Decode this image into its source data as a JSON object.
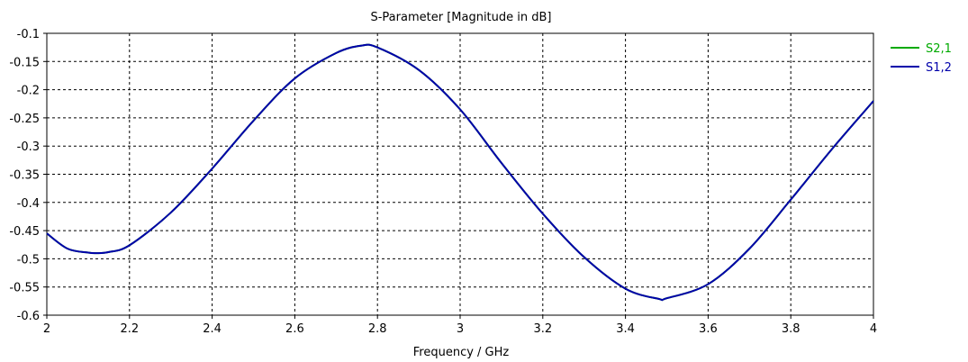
{
  "chart_data": {
    "type": "line",
    "title": "S-Parameter [Magnitude in dB]",
    "xlabel": "Frequency / GHz",
    "ylabel": "",
    "xlim": [
      2,
      4
    ],
    "ylim": [
      -0.6,
      -0.1
    ],
    "xticks": [
      "2",
      "2.2",
      "2.4",
      "2.6",
      "2.8",
      "3",
      "3.2",
      "3.4",
      "3.6",
      "3.8",
      "4"
    ],
    "yticks": [
      "-0.1",
      "-0.15",
      "-0.2",
      "-0.25",
      "-0.3",
      "-0.35",
      "-0.4",
      "-0.45",
      "-0.5",
      "-0.55",
      "-0.6"
    ],
    "grid": true,
    "legend_position": "top-right",
    "series": [
      {
        "name": "S2,1",
        "color": "#00aa00",
        "x": [
          2.0,
          2.05,
          2.1,
          2.12,
          2.15,
          2.2,
          2.3,
          2.4,
          2.5,
          2.6,
          2.7,
          2.76,
          2.8,
          2.9,
          3.0,
          3.1,
          3.2,
          3.3,
          3.4,
          3.48,
          3.5,
          3.6,
          3.7,
          3.8,
          3.9,
          4.0
        ],
        "y": [
          -0.455,
          -0.482,
          -0.489,
          -0.49,
          -0.488,
          -0.476,
          -0.418,
          -0.34,
          -0.255,
          -0.18,
          -0.135,
          -0.122,
          -0.125,
          -0.165,
          -0.235,
          -0.33,
          -0.42,
          -0.497,
          -0.553,
          -0.571,
          -0.57,
          -0.545,
          -0.482,
          -0.395,
          -0.305,
          -0.22
        ]
      },
      {
        "name": "S1,2",
        "color": "#0000aa",
        "x": [
          2.0,
          2.05,
          2.1,
          2.12,
          2.15,
          2.2,
          2.3,
          2.4,
          2.5,
          2.6,
          2.7,
          2.76,
          2.8,
          2.9,
          3.0,
          3.1,
          3.2,
          3.3,
          3.4,
          3.48,
          3.5,
          3.6,
          3.7,
          3.8,
          3.9,
          4.0
        ],
        "y": [
          -0.455,
          -0.482,
          -0.489,
          -0.49,
          -0.488,
          -0.476,
          -0.418,
          -0.34,
          -0.255,
          -0.18,
          -0.135,
          -0.122,
          -0.125,
          -0.165,
          -0.235,
          -0.33,
          -0.42,
          -0.497,
          -0.553,
          -0.571,
          -0.57,
          -0.545,
          -0.482,
          -0.395,
          -0.305,
          -0.22
        ]
      }
    ]
  }
}
